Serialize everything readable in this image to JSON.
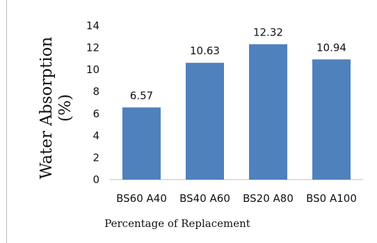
{
  "chart_data": {
    "type": "bar",
    "categories": [
      "BS60 A40",
      "BS40 A60",
      "BS20 A80",
      "BS0 A100"
    ],
    "values": [
      6.57,
      10.63,
      12.32,
      10.94
    ],
    "value_labels": [
      "6.57",
      "10.63",
      "12.32",
      "10.94"
    ],
    "ylabel_line1": "Water Absorption",
    "ylabel_line2": "(%)",
    "xlabel": "Percentage of Replacement",
    "ylim": [
      0,
      14
    ],
    "yticks": [
      0,
      2,
      4,
      6,
      8,
      10,
      12,
      14
    ],
    "grid": false,
    "legend": "none",
    "bar_color": "#4f81bd"
  }
}
